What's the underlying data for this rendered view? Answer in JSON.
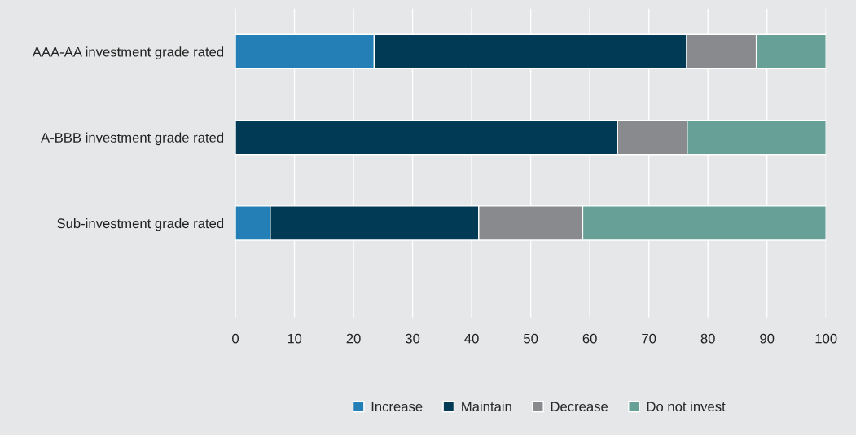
{
  "chart_data": {
    "type": "bar",
    "orientation": "horizontal",
    "stacked": true,
    "categories": [
      "AAA-AA investment grade rated",
      "A-BBB investment grade rated",
      "Sub-investment grade rated"
    ],
    "series": [
      {
        "name": "Increase",
        "color": "#237fb5",
        "values": [
          23.5,
          0,
          5.9
        ]
      },
      {
        "name": "Maintain",
        "color": "#003a54",
        "values": [
          52.9,
          64.7,
          35.3
        ]
      },
      {
        "name": "Decrease",
        "color": "#898a8d",
        "values": [
          11.8,
          11.8,
          17.6
        ]
      },
      {
        "name": "Do not invest",
        "color": "#67a096",
        "values": [
          11.8,
          23.5,
          41.2
        ]
      }
    ],
    "xlim": [
      0,
      100
    ],
    "xticks": [
      0,
      10,
      20,
      30,
      40,
      50,
      60,
      70,
      80,
      90,
      100
    ],
    "grid": "x",
    "legend": "bottom"
  }
}
